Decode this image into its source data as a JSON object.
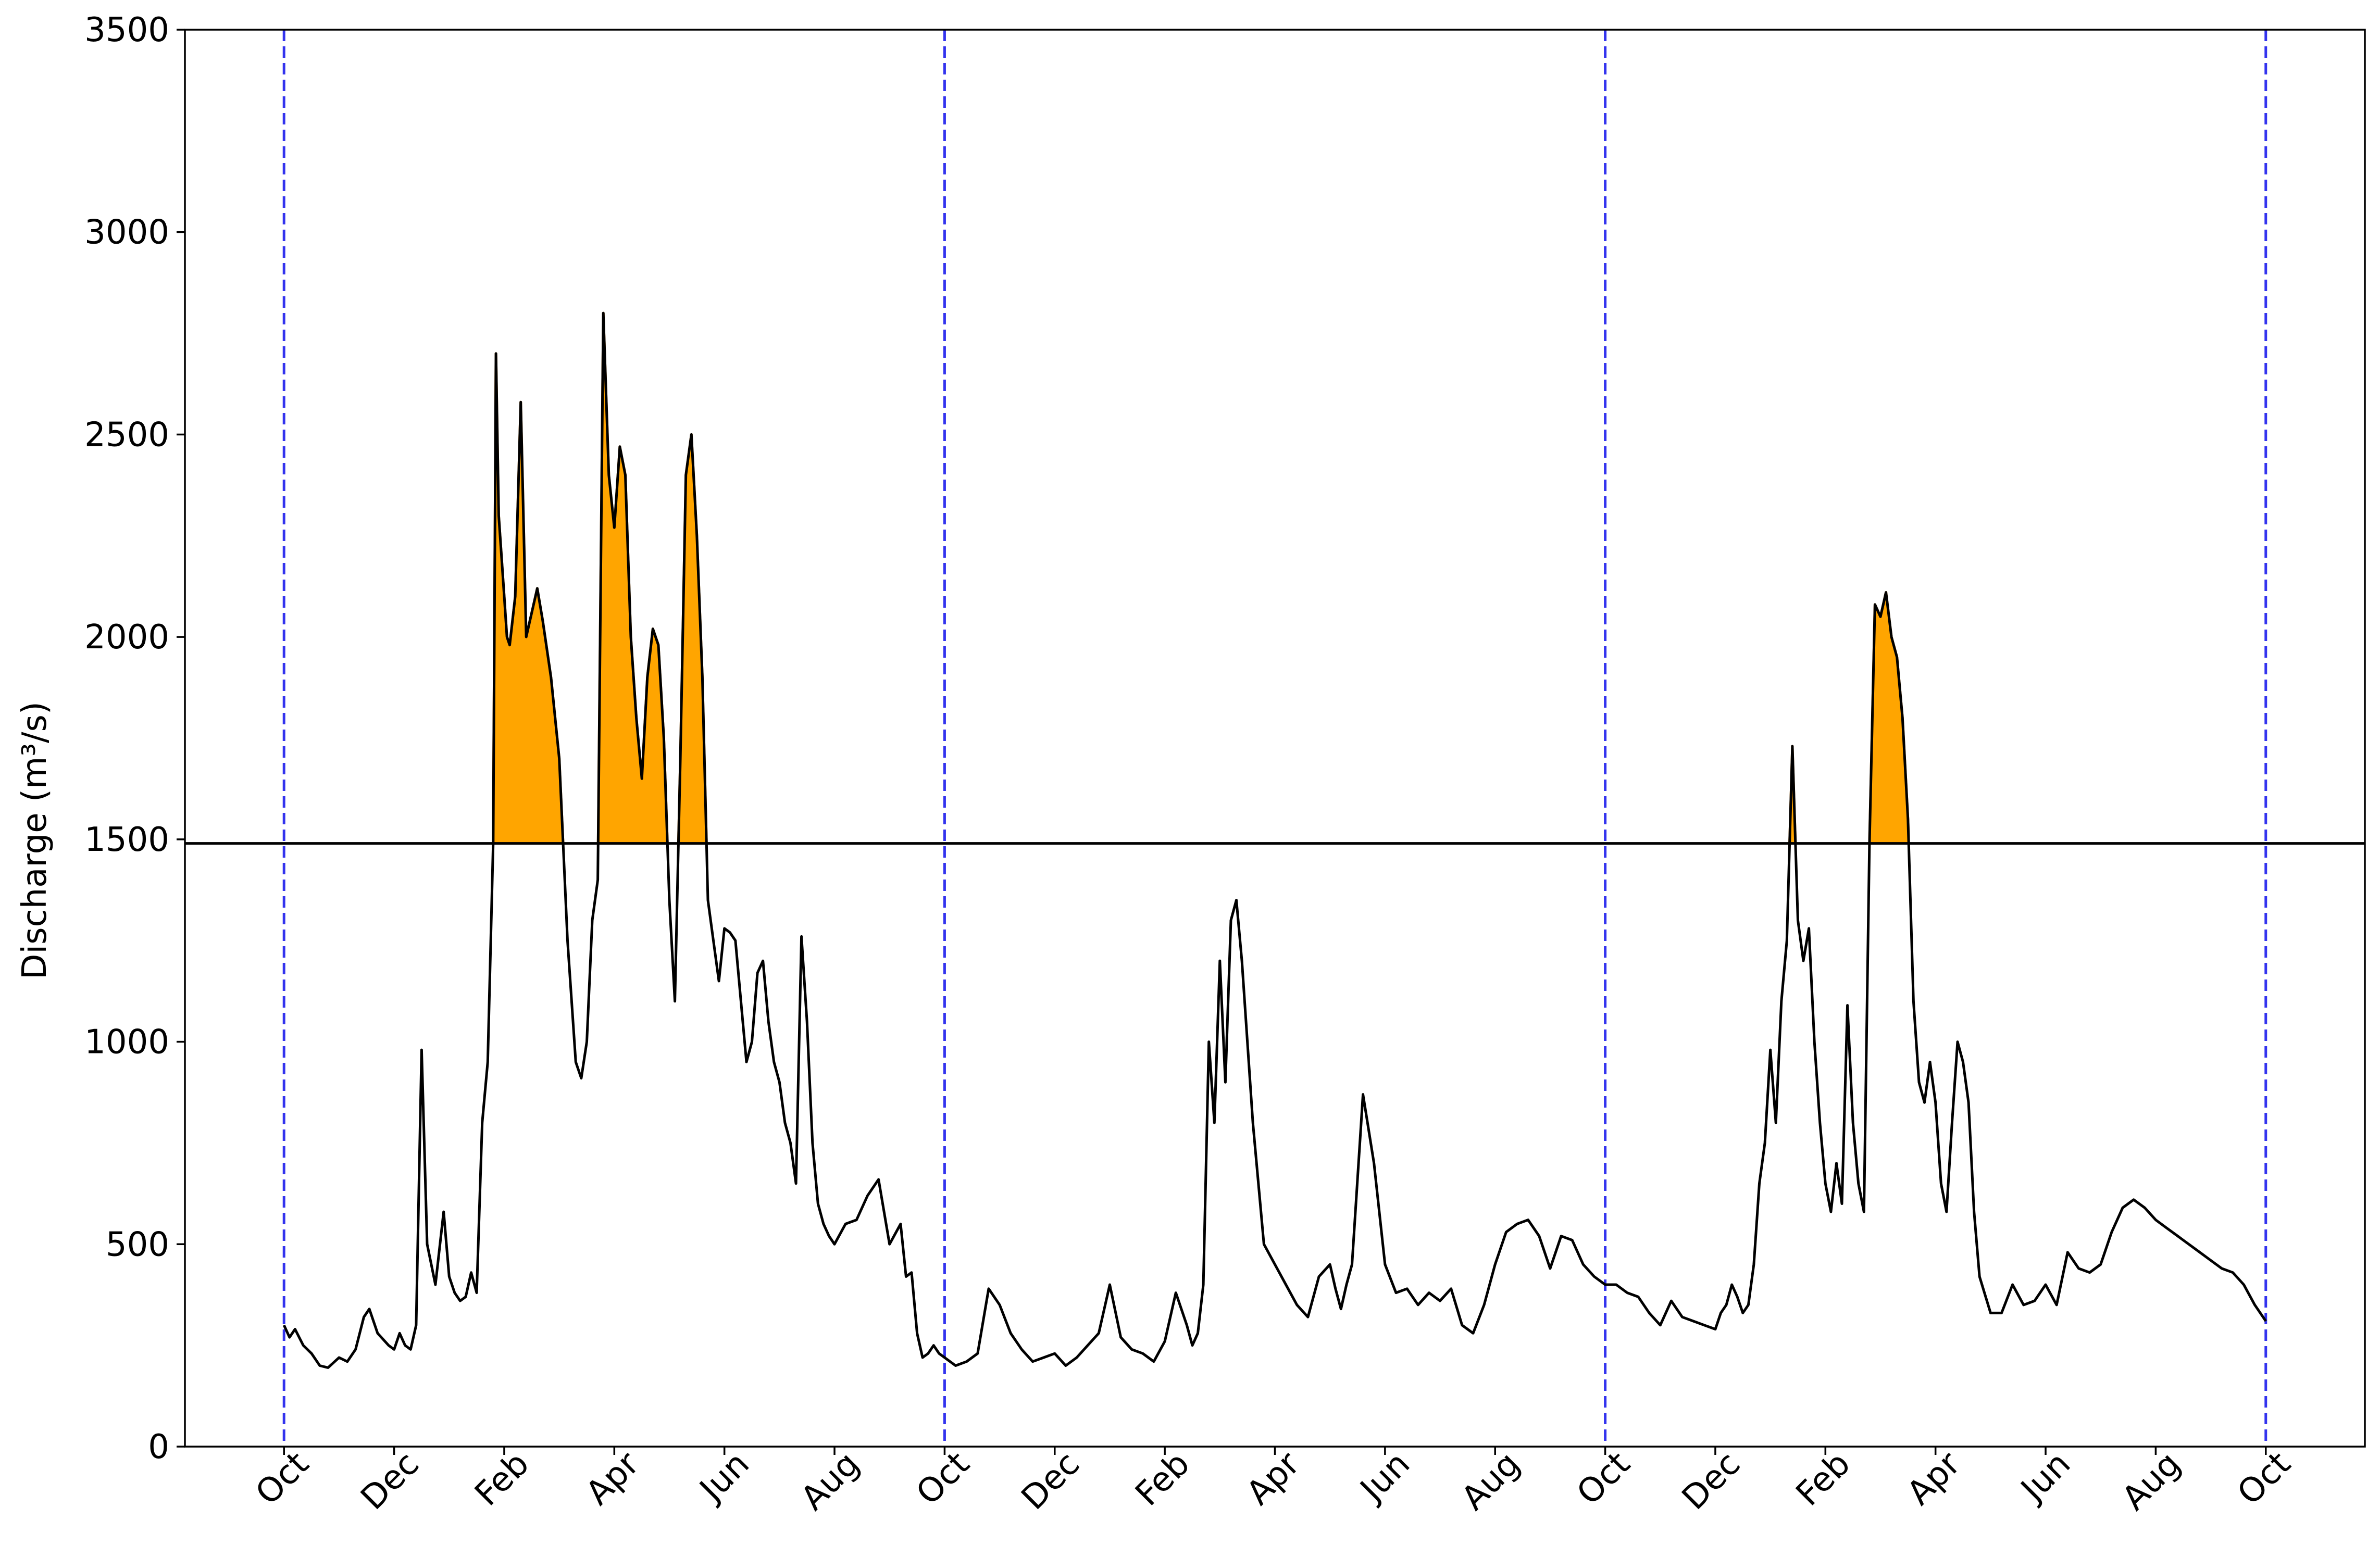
{
  "chart_data": {
    "type": "line",
    "title": "",
    "xlabel": "",
    "ylabel": "Discharge (m³/s)",
    "ylim": [
      0,
      3500
    ],
    "xlim": [
      -1.8,
      37.8
    ],
    "yticks": [
      0,
      500,
      1000,
      1500,
      2000,
      2500,
      3000,
      3500
    ],
    "xticks": [
      {
        "x": 0,
        "label": "Oct"
      },
      {
        "x": 2,
        "label": "Dec"
      },
      {
        "x": 4,
        "label": "Feb"
      },
      {
        "x": 6,
        "label": "Apr"
      },
      {
        "x": 8,
        "label": "Jun"
      },
      {
        "x": 10,
        "label": "Aug"
      },
      {
        "x": 12,
        "label": "Oct"
      },
      {
        "x": 14,
        "label": "Dec"
      },
      {
        "x": 16,
        "label": "Feb"
      },
      {
        "x": 18,
        "label": "Apr"
      },
      {
        "x": 20,
        "label": "Jun"
      },
      {
        "x": 22,
        "label": "Aug"
      },
      {
        "x": 24,
        "label": "Oct"
      },
      {
        "x": 26,
        "label": "Dec"
      },
      {
        "x": 28,
        "label": "Feb"
      },
      {
        "x": 30,
        "label": "Apr"
      },
      {
        "x": 32,
        "label": "Jun"
      },
      {
        "x": 34,
        "label": "Aug"
      },
      {
        "x": 36,
        "label": "Oct"
      }
    ],
    "threshold": 1490,
    "year_markers": [
      0,
      12,
      24,
      36
    ],
    "grid": false,
    "colors": {
      "line": "#000000",
      "fill": "#ffa500",
      "fill_edge": "#ff8c00",
      "marker": "#3333ee",
      "threshold": "#000000"
    },
    "series": [
      {
        "x": [
          0,
          0.1,
          0.2,
          0.35,
          0.5,
          0.65,
          0.8,
          1.0,
          1.15,
          1.3,
          1.45,
          1.55,
          1.7,
          1.9,
          2.0,
          2.1,
          2.2,
          2.3,
          2.4,
          2.5,
          2.6,
          2.75,
          2.9,
          3.0,
          3.1,
          3.2,
          3.3,
          3.4,
          3.5,
          3.6,
          3.7,
          3.8,
          3.85,
          3.9,
          4.0,
          4.05,
          4.1,
          4.2,
          4.3,
          4.4,
          4.6,
          4.7,
          4.85,
          5.0,
          5.15,
          5.3,
          5.4,
          5.5,
          5.6,
          5.7,
          5.8,
          5.9,
          6.0,
          6.1,
          6.2,
          6.3,
          6.4,
          6.5,
          6.6,
          6.7,
          6.8,
          6.9,
          7.0,
          7.1,
          7.2,
          7.3,
          7.4,
          7.5,
          7.6,
          7.7,
          7.8,
          7.9,
          8.0,
          8.1,
          8.2,
          8.3,
          8.4,
          8.5,
          8.6,
          8.7,
          8.8,
          8.9,
          9.0,
          9.1,
          9.2,
          9.3,
          9.4,
          9.5,
          9.6,
          9.7,
          9.8,
          9.9,
          10.0,
          10.2,
          10.4,
          10.6,
          10.8,
          11.0,
          11.2,
          11.3,
          11.4,
          11.5,
          11.6,
          11.7,
          11.8,
          11.9,
          12.0,
          12.2,
          12.4,
          12.6,
          12.8,
          13.0,
          13.2,
          13.4,
          13.6,
          13.8,
          14.0,
          14.2,
          14.4,
          14.6,
          14.8,
          15.0,
          15.2,
          15.4,
          15.6,
          15.8,
          16.0,
          16.2,
          16.4,
          16.5,
          16.6,
          16.7,
          16.8,
          16.9,
          17.0,
          17.1,
          17.2,
          17.3,
          17.4,
          17.6,
          17.8,
          18.0,
          18.2,
          18.4,
          18.6,
          18.8,
          19.0,
          19.1,
          19.2,
          19.3,
          19.4,
          19.6,
          19.8,
          20.0,
          20.2,
          20.4,
          20.6,
          20.8,
          21.0,
          21.2,
          21.4,
          21.6,
          21.8,
          22.0,
          22.2,
          22.4,
          22.6,
          22.8,
          23.0,
          23.2,
          23.4,
          23.6,
          23.8,
          24.0,
          24.2,
          24.4,
          24.6,
          24.8,
          25.0,
          25.2,
          25.4,
          25.6,
          25.8,
          26.0,
          26.1,
          26.2,
          26.3,
          26.4,
          26.5,
          26.6,
          26.7,
          26.8,
          26.9,
          27.0,
          27.1,
          27.2,
          27.3,
          27.4,
          27.5,
          27.6,
          27.7,
          27.8,
          27.9,
          28.0,
          28.1,
          28.2,
          28.3,
          28.4,
          28.5,
          28.6,
          28.7,
          28.8,
          28.9,
          29.0,
          29.1,
          29.2,
          29.3,
          29.4,
          29.5,
          29.6,
          29.7,
          29.8,
          29.9,
          30.0,
          30.1,
          30.2,
          30.3,
          30.4,
          30.5,
          30.6,
          30.7,
          30.8,
          31.0,
          31.2,
          31.4,
          31.6,
          31.8,
          32.0,
          32.2,
          32.4,
          32.6,
          32.8,
          33.0,
          33.2,
          33.4,
          33.6,
          33.8,
          34.0,
          34.2,
          34.4,
          34.6,
          34.8,
          35.0,
          35.2,
          35.4,
          35.6,
          35.8,
          36.0
        ],
        "y": [
          300,
          270,
          290,
          250,
          230,
          200,
          195,
          220,
          210,
          240,
          320,
          340,
          280,
          250,
          240,
          280,
          250,
          240,
          300,
          980,
          500,
          400,
          580,
          420,
          380,
          360,
          370,
          430,
          380,
          800,
          950,
          1490,
          2700,
          2300,
          2100,
          2000,
          1980,
          2100,
          2580,
          2000,
          2120,
          2040,
          1900,
          1700,
          1250,
          950,
          910,
          1000,
          1300,
          1400,
          2800,
          2400,
          2270,
          2470,
          2400,
          2000,
          1800,
          1650,
          1900,
          2020,
          1980,
          1750,
          1350,
          1100,
          1700,
          2400,
          2500,
          2250,
          1900,
          1350,
          1250,
          1150,
          1280,
          1270,
          1250,
          1100,
          950,
          1000,
          1170,
          1200,
          1050,
          950,
          900,
          800,
          750,
          650,
          1260,
          1050,
          750,
          600,
          550,
          520,
          500,
          550,
          560,
          620,
          660,
          500,
          550,
          420,
          430,
          280,
          220,
          230,
          250,
          230,
          220,
          200,
          210,
          230,
          390,
          350,
          280,
          240,
          210,
          220,
          230,
          200,
          220,
          250,
          280,
          400,
          270,
          240,
          230,
          210,
          260,
          380,
          300,
          250,
          280,
          400,
          1000,
          800,
          1200,
          900,
          1300,
          1350,
          1200,
          800,
          500,
          450,
          400,
          350,
          320,
          420,
          450,
          390,
          340,
          400,
          450,
          870,
          700,
          450,
          380,
          390,
          350,
          380,
          360,
          390,
          300,
          280,
          350,
          450,
          530,
          550,
          560,
          520,
          440,
          520,
          510,
          450,
          420,
          400,
          400,
          380,
          370,
          330,
          300,
          360,
          320,
          310,
          300,
          290,
          330,
          350,
          400,
          370,
          330,
          350,
          450,
          650,
          750,
          980,
          800,
          1100,
          1250,
          1730,
          1300,
          1200,
          1280,
          1000,
          800,
          650,
          580,
          700,
          600,
          1090,
          800,
          650,
          580,
          1490,
          2080,
          2050,
          2110,
          2000,
          1950,
          1800,
          1550,
          1100,
          900,
          850,
          950,
          850,
          650,
          580,
          800,
          1000,
          950,
          850,
          580,
          420,
          330,
          330,
          400,
          350,
          360,
          400,
          350,
          480,
          440,
          430,
          450,
          530,
          590,
          610,
          590,
          560,
          540,
          520,
          500,
          480,
          460,
          440,
          430,
          400,
          350,
          310
        ]
      }
    ]
  }
}
